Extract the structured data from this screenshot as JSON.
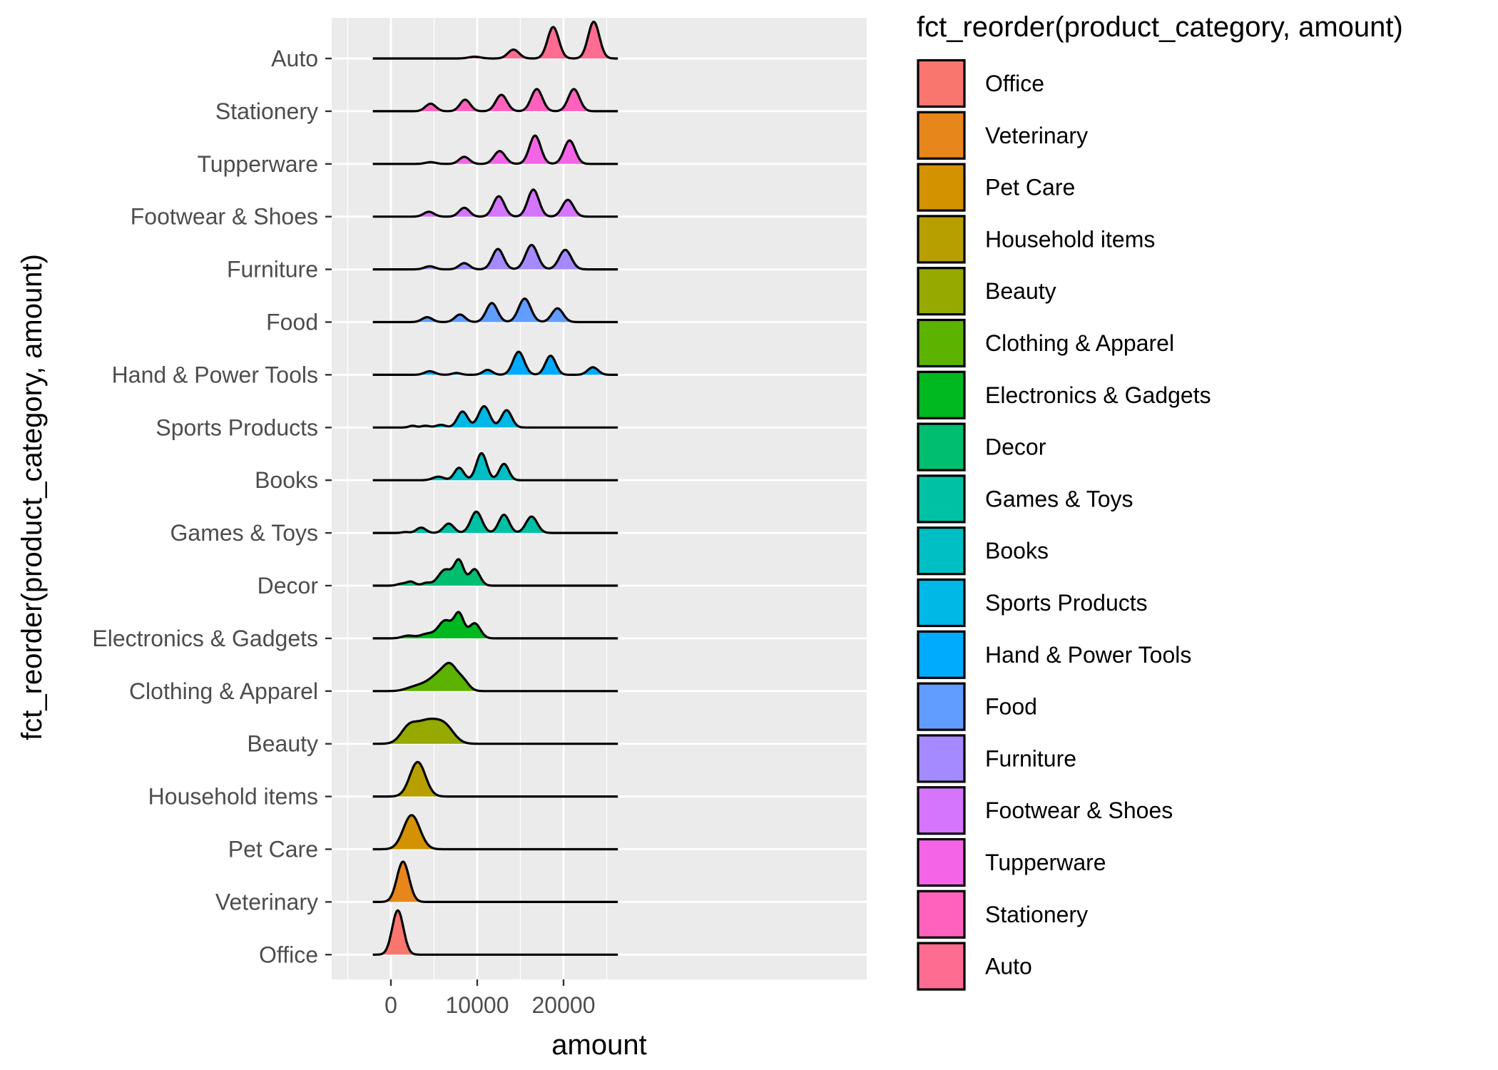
{
  "chart_data": {
    "type": "ridgeline",
    "xlabel": "amount",
    "ylabel": "fct_reorder(product_category, amount)",
    "xlim": [
      -3400,
      27600
    ],
    "x_ticks": [
      0,
      10000,
      20000
    ],
    "x_tick_labels": [
      "0",
      "10000",
      "20000"
    ],
    "grid": true,
    "legend": {
      "title": "fct_reorder(product_category, amount)",
      "placement": "right"
    },
    "series": [
      {
        "name": "Office",
        "color": "#F8766D",
        "range": [
          -2100,
          26300
        ],
        "peaks": [
          [
            800,
            1.0,
            650
          ]
        ]
      },
      {
        "name": "Veterinary",
        "color": "#E7861B",
        "range": [
          -2100,
          26300
        ],
        "peaks": [
          [
            1400,
            0.91,
            700
          ]
        ]
      },
      {
        "name": "Pet Care",
        "color": "#D39200",
        "range": [
          -2100,
          26300
        ],
        "peaks": [
          [
            2400,
            0.77,
            950
          ]
        ]
      },
      {
        "name": "Household items",
        "color": "#B79F00",
        "range": [
          -2100,
          26300
        ],
        "peaks": [
          [
            3100,
            0.78,
            900
          ]
        ]
      },
      {
        "name": "Beauty",
        "color": "#95A900",
        "range": [
          -2100,
          26300
        ],
        "peaks": [
          [
            2000,
            0.28,
            900
          ],
          [
            4300,
            0.52,
            1500
          ],
          [
            6400,
            0.26,
            1000
          ]
        ]
      },
      {
        "name": "Clothing & Apparel",
        "color": "#5BB300",
        "range": [
          -2100,
          26300
        ],
        "peaks": [
          [
            2400,
            0.06,
            900
          ],
          [
            4000,
            0.14,
            1000
          ],
          [
            5600,
            0.32,
            900
          ],
          [
            6900,
            0.48,
            750
          ],
          [
            8300,
            0.24,
            700
          ]
        ]
      },
      {
        "name": "Electronics & Gadgets",
        "color": "#00B81F",
        "range": [
          -2100,
          26300
        ],
        "peaks": [
          [
            2000,
            0.06,
            700
          ],
          [
            4200,
            0.1,
            800
          ],
          [
            6300,
            0.4,
            800
          ],
          [
            7900,
            0.53,
            550
          ],
          [
            9700,
            0.34,
            650
          ]
        ]
      },
      {
        "name": "Decor",
        "color": "#00BE70",
        "range": [
          -2100,
          26300
        ],
        "peaks": [
          [
            1200,
            0.04,
            500
          ],
          [
            2300,
            0.09,
            500
          ],
          [
            4100,
            0.06,
            500
          ],
          [
            6300,
            0.36,
            800
          ],
          [
            7900,
            0.54,
            550
          ],
          [
            9700,
            0.37,
            600
          ]
        ]
      },
      {
        "name": "Games & Toys",
        "color": "#00C1A3",
        "range": [
          -2100,
          26300
        ],
        "peaks": [
          [
            1700,
            0.02,
            400
          ],
          [
            3500,
            0.12,
            550
          ],
          [
            6700,
            0.21,
            600
          ],
          [
            9900,
            0.48,
            650
          ],
          [
            13100,
            0.41,
            600
          ],
          [
            16300,
            0.37,
            650
          ]
        ]
      },
      {
        "name": "Books",
        "color": "#00BFC4",
        "range": [
          -2100,
          26300
        ],
        "peaks": [
          [
            5500,
            0.08,
            650
          ],
          [
            7900,
            0.28,
            550
          ],
          [
            10500,
            0.61,
            600
          ],
          [
            13100,
            0.37,
            550
          ]
        ]
      },
      {
        "name": "Sports Products",
        "color": "#00B8E5",
        "range": [
          -2100,
          26300
        ],
        "peaks": [
          [
            2500,
            0.04,
            400
          ],
          [
            4000,
            0.04,
            500
          ],
          [
            5800,
            0.06,
            550
          ],
          [
            8300,
            0.36,
            600
          ],
          [
            10800,
            0.48,
            650
          ],
          [
            13400,
            0.39,
            600
          ]
        ]
      },
      {
        "name": "Hand & Power Tools",
        "color": "#00ABFD",
        "range": [
          -2100,
          26300
        ],
        "peaks": [
          [
            4500,
            0.08,
            600
          ],
          [
            7600,
            0.04,
            500
          ],
          [
            11200,
            0.11,
            550
          ],
          [
            14800,
            0.52,
            650
          ],
          [
            18500,
            0.43,
            600
          ],
          [
            23400,
            0.17,
            600
          ]
        ]
      },
      {
        "name": "Food",
        "color": "#619CFF",
        "range": [
          -2100,
          26300
        ],
        "peaks": [
          [
            4200,
            0.11,
            600
          ],
          [
            8000,
            0.17,
            600
          ],
          [
            11700,
            0.43,
            650
          ],
          [
            15500,
            0.53,
            700
          ],
          [
            19300,
            0.31,
            650
          ]
        ]
      },
      {
        "name": "Furniture",
        "color": "#A58AFF",
        "range": [
          -2100,
          26300
        ],
        "peaks": [
          [
            4500,
            0.07,
            600
          ],
          [
            8500,
            0.14,
            600
          ],
          [
            12400,
            0.46,
            650
          ],
          [
            16300,
            0.55,
            700
          ],
          [
            20200,
            0.44,
            700
          ]
        ]
      },
      {
        "name": "Footwear & Shoes",
        "color": "#D575FE",
        "range": [
          -2100,
          26300
        ],
        "peaks": [
          [
            4400,
            0.11,
            600
          ],
          [
            8500,
            0.2,
            600
          ],
          [
            12500,
            0.46,
            650
          ],
          [
            16500,
            0.61,
            650
          ],
          [
            20500,
            0.38,
            650
          ]
        ]
      },
      {
        "name": "Tupperware",
        "color": "#F365E6",
        "range": [
          -2100,
          26300
        ],
        "peaks": [
          [
            4600,
            0.04,
            600
          ],
          [
            8500,
            0.16,
            600
          ],
          [
            12600,
            0.29,
            650
          ],
          [
            16700,
            0.64,
            650
          ],
          [
            20700,
            0.53,
            650
          ]
        ]
      },
      {
        "name": "Stationery",
        "color": "#FF62BC",
        "range": [
          -2100,
          26300
        ],
        "peaks": [
          [
            4600,
            0.17,
            600
          ],
          [
            8600,
            0.26,
            600
          ],
          [
            12800,
            0.37,
            650
          ],
          [
            16900,
            0.5,
            650
          ],
          [
            21200,
            0.5,
            650
          ]
        ]
      },
      {
        "name": "Auto",
        "color": "#FF6C91",
        "range": [
          -2100,
          26300
        ],
        "peaks": [
          [
            9700,
            0.04,
            700
          ],
          [
            14200,
            0.2,
            650
          ],
          [
            18800,
            0.71,
            650
          ],
          [
            23500,
            0.83,
            650
          ]
        ]
      }
    ]
  }
}
